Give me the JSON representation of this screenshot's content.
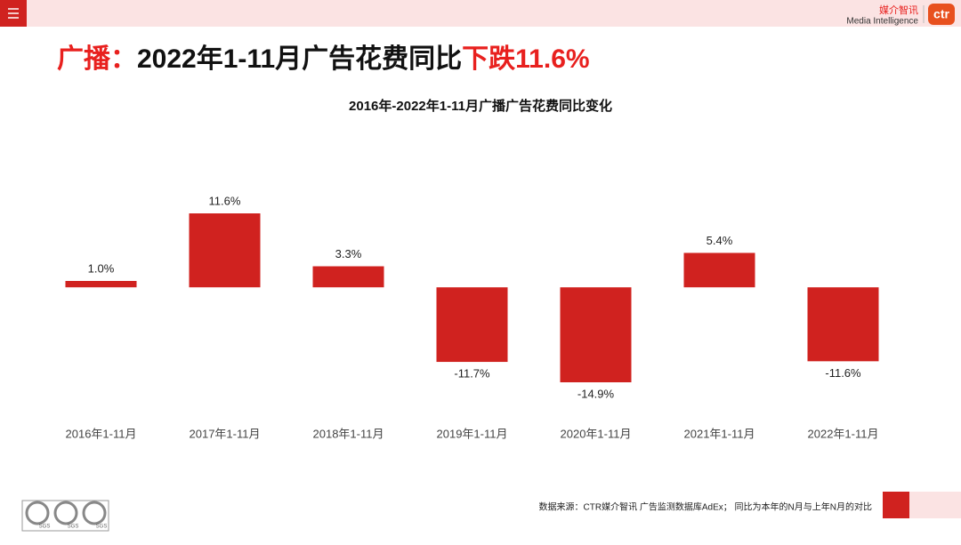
{
  "header": {
    "logo_cn": "媒介智讯",
    "logo_en": "Media Intelligence",
    "logo_mark": "ctr"
  },
  "headline": [
    {
      "text": "广播：",
      "color": "#e8201e"
    },
    {
      "text": "2022年1-11月广告花费同比",
      "color": "#111111"
    },
    {
      "text": "下跌11.6%",
      "color": "#e8201e"
    }
  ],
  "chart_data": {
    "type": "bar",
    "title": "2016年-2022年1-11月广播广告花费同比变化",
    "categories": [
      "2016年1-11月",
      "2017年1-11月",
      "2018年1-11月",
      "2019年1-11月",
      "2020年1-11月",
      "2021年1-11月",
      "2022年1-11月"
    ],
    "values": [
      1.0,
      11.6,
      3.3,
      -11.7,
      -14.9,
      5.4,
      -11.6
    ],
    "value_labels": [
      "1.0%",
      "11.6%",
      "3.3%",
      "-11.7%",
      "-14.9%",
      "5.4%",
      "-11.6%"
    ],
    "color": "#d0221f"
  },
  "footer": {
    "source": "数据来源：CTR媒介智讯 广告监测数据库AdEx；  同比为本年的N月与上年N月的对比",
    "certs": [
      "SGS",
      "SGS",
      "SGS"
    ]
  }
}
